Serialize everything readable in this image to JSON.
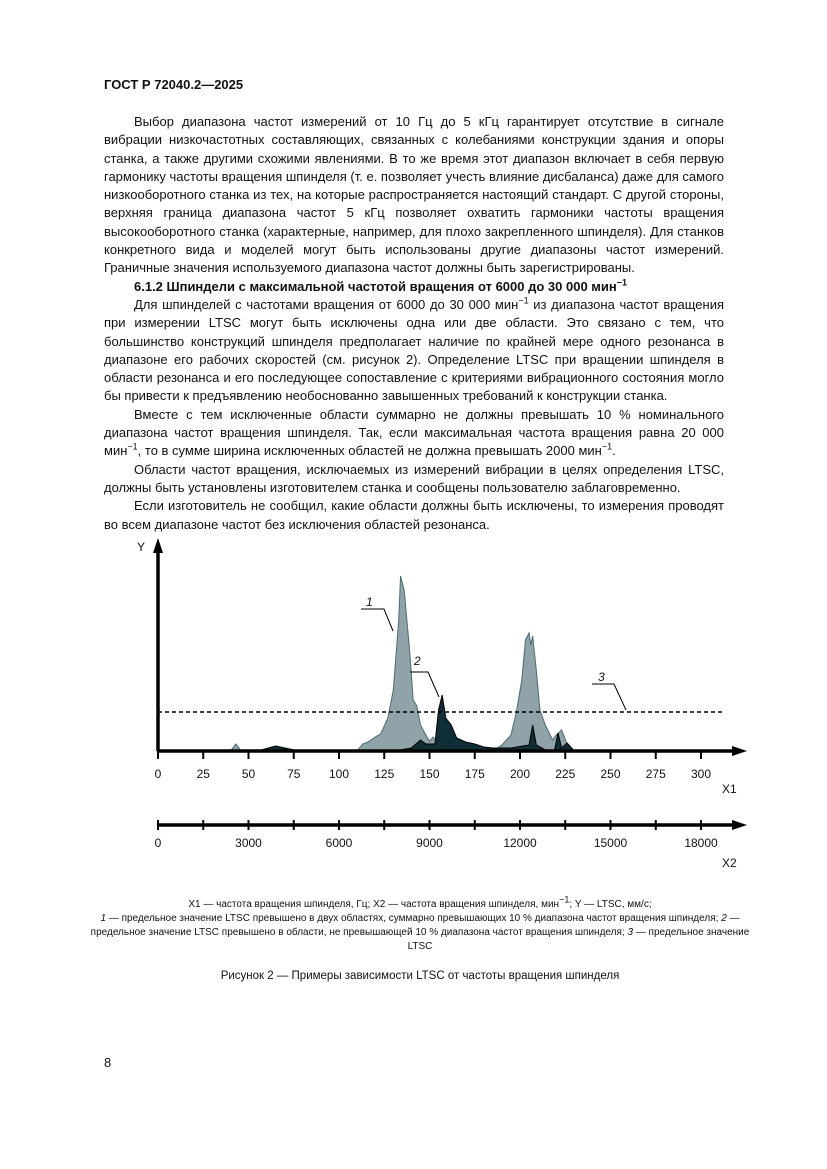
{
  "header": {
    "doc_id": "ГОСТ Р 72040.2—2025"
  },
  "body": {
    "p1": "Выбор диапазона частот измерений от 10 Гц до 5 кГц гарантирует отсутствие в сигнале вибрации низкочастотных составляющих, связанных с колебаниями конструкции здания и опоры станка, а также другими схожими явлениями. В то же время этот диапазон включает в себя первую гармонику частоты вращения шпинделя (т. е. позволяет учесть влияние дисбаланса) даже для самого низкооборотного станка из тех, на которые распространяется настоящий стандарт. С другой стороны, верхняя граница диапазона частот 5 кГц позволяет охватить гармоники частоты вращения высокооборотного станка (характерные, например, для плохо закрепленного шпинделя). Для станков конкретного вида и моделей могут быть использованы другие диапазоны частот измерений. Граничные значения используемого диапазона частот должны быть зарегистрированы.",
    "heading": "6.1.2 Шпиндели с максимальной частотой вращения от 6000 до 30 000 мин",
    "heading_sup": "−1",
    "p2a": "Для шпинделей с частотами вращения от 6000 до 30 000 мин",
    "p2sup": "−1",
    "p2b": " из диапазона частот вращения при измерении LTSC могут быть исключены одна или две области. Это связано с тем, что большинство конструкций шпинделя предполагает наличие по крайней мере одного резонанса в диапазоне его рабочих скоростей (см. рисунок 2). Определение LTSC при вращении шпинделя в области резонанса и его последующее сопоставление с критериями вибрационного состояния могло бы привести к предъявлению необоснованно завышенных требований к конструкции станка.",
    "p3a": "Вместе с тем исключенные области суммарно не должны превышать 10 % номинального диапазона частот вращения шпинделя. Так, если максимальная частота вращения равна 20 000 мин",
    "p3sup1": "−1",
    "p3b": ", то в сумме ширина исключенных областей не должна превышать 2000 мин",
    "p3sup2": "−1",
    "p3c": ".",
    "p4": "Области частот вращения, исключаемых из измерений вибрации в целях определения LTSC, должны быть установлены изготовителем станка и сообщены пользователю заблаговременно.",
    "p5": "Если изготовитель не сообщил, какие области должны быть исключены, то измерения проводят во всем диапазоне частот без исключения областей резонанса."
  },
  "figure": {
    "y_label": "Y",
    "x1_label": "X1",
    "x2_label": "X2",
    "x1_ticks": [
      "0",
      "25",
      "50",
      "75",
      "100",
      "125",
      "150",
      "175",
      "200",
      "225",
      "250",
      "275",
      "300"
    ],
    "x2_ticks": [
      "0",
      "3000",
      "6000",
      "9000",
      "12000",
      "15000",
      "18000"
    ],
    "callouts": [
      "1",
      "2",
      "3"
    ],
    "colors": {
      "curve1": "#8fa3a8",
      "curve1_edge": "#4e6a72",
      "curve2": "#0f2e35"
    },
    "caption_line1": "X1 — частота вращения шпинделя, Гц; X2 — частота вращения шпинделя, мин",
    "caption_sup": "−1",
    "caption_line1b": "; Y — LTSC, мм/с;",
    "caption_n1": "1",
    "caption_t1": " — предельное значение LTSC превышено в двух областях, суммарно превышающих 10 % диапазона частот вращения шпинделя; ",
    "caption_n2": "2",
    "caption_t2": " — предельное значение LTSC превышено в области, не превышающей 10 % диапазона частот вращения шпинделя; ",
    "caption_n3": "3",
    "caption_t3": " — предельное значение LTSC",
    "title": "Рисунок 2 — Примеры зависимости LTSC от частоты вращения шпинделя"
  },
  "page_number": "8"
}
